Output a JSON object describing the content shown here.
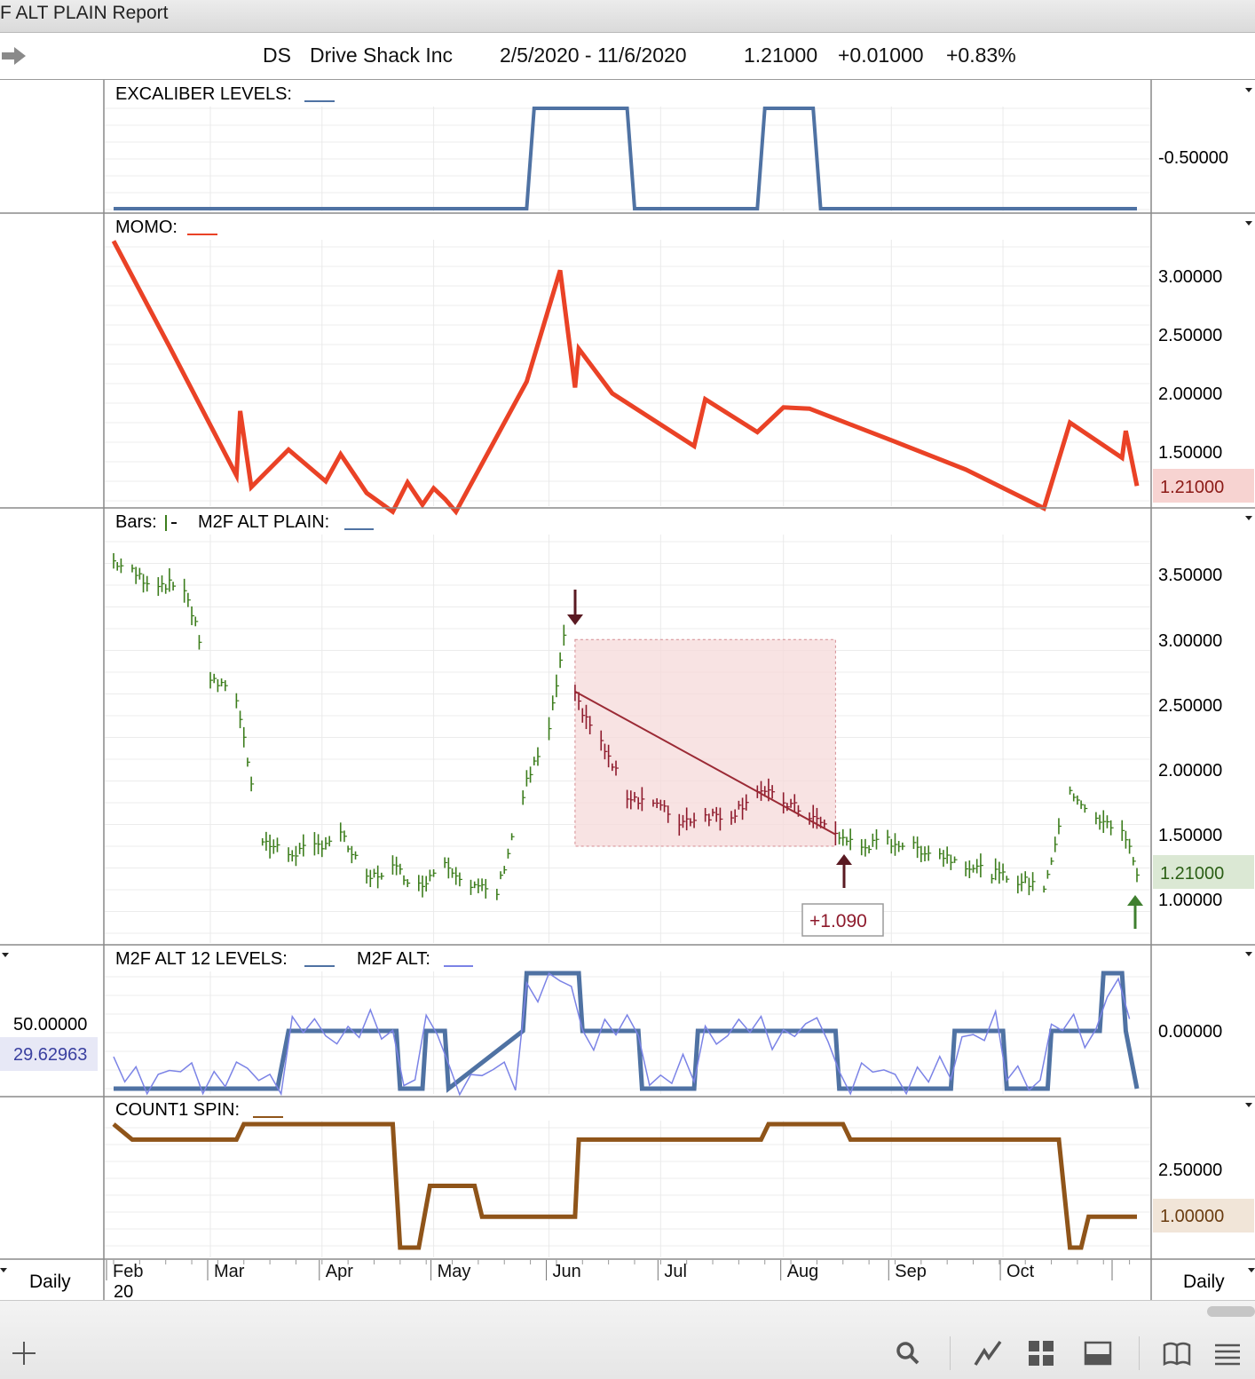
{
  "window": {
    "title": "F ALT PLAIN Report"
  },
  "symbol_bar": {
    "symbol": "DS",
    "name": "Drive Shack Inc",
    "date_range": "2/5/2020 - 11/6/2020",
    "last": "1.21000",
    "change": "+0.01000",
    "change_pct": "+0.83%"
  },
  "panels": {
    "excaliber": {
      "title": "EXCALIBER LEVELS:",
      "axis_labels": [
        "-0.50000"
      ]
    },
    "momo": {
      "title": "MOMO:",
      "axis_labels": [
        "3.00000",
        "2.50000",
        "2.00000",
        "1.50000"
      ],
      "last_badge": "1.21000"
    },
    "bars": {
      "title_bars": "Bars:",
      "title_line": "M2F ALT PLAIN:",
      "axis_labels": [
        "3.50000",
        "3.00000",
        "2.50000",
        "2.00000",
        "1.50000",
        "1.00000"
      ],
      "last_badge": "1.21000",
      "trade_label": "+1.090"
    },
    "m2f12": {
      "title1": "M2F ALT 12 LEVELS:",
      "title2": "M2F ALT:",
      "axis_labels": [
        "0.00000"
      ],
      "left_label": "50.00000",
      "left_badge": "29.62963"
    },
    "count1": {
      "title": "COUNT1 SPIN:",
      "axis_labels": [
        "2.50000"
      ],
      "last_badge": "1.00000"
    }
  },
  "time_axis": {
    "months": [
      "Feb",
      "Mar",
      "Apr",
      "May",
      "Jun",
      "Jul",
      "Aug",
      "Sep",
      "Oct"
    ],
    "year": "20",
    "period_left": "Daily",
    "period_right": "Daily"
  },
  "colors": {
    "level_line": "#4f72a3",
    "momo_line": "#ea4226",
    "bar_up": "#3c7d1c",
    "bar_down": "#8e1a2c",
    "count_line": "#8f5419",
    "trade_box": "#f5d9da"
  },
  "toolbar": {
    "icons": [
      "add-icon",
      "search-icon",
      "chart-line-icon",
      "grid-layout-icon",
      "panel-layout-icon",
      "book-icon",
      "menu-icon"
    ]
  },
  "chart_data": [
    {
      "type": "line",
      "title": "EXCALIBER LEVELS",
      "x": [
        "2020-02-05",
        "2020-05-26",
        "2020-05-28",
        "2020-06-22",
        "2020-06-24",
        "2020-07-27",
        "2020-07-29",
        "2020-08-11",
        "2020-08-13",
        "2020-11-06"
      ],
      "values": [
        0,
        0,
        1,
        1,
        0,
        0,
        1,
        1,
        0,
        0
      ]
    },
    {
      "type": "line",
      "title": "MOMO",
      "x": [
        "2020-02-05",
        "2020-02-20",
        "2020-03-09",
        "2020-03-10",
        "2020-03-13",
        "2020-03-23",
        "2020-04-02",
        "2020-04-06",
        "2020-04-13",
        "2020-04-20",
        "2020-04-24",
        "2020-04-28",
        "2020-05-01",
        "2020-05-04",
        "2020-05-07",
        "2020-05-26",
        "2020-06-04",
        "2020-06-08",
        "2020-06-09",
        "2020-06-18",
        "2020-07-10",
        "2020-07-13",
        "2020-07-27",
        "2020-08-03",
        "2020-08-10",
        "2020-09-01",
        "2020-09-21",
        "2020-10-12",
        "2020-10-19",
        "2020-11-02",
        "2020-11-03",
        "2020-11-06"
      ],
      "values": [
        3.3,
        2.4,
        1.3,
        1.85,
        1.2,
        1.52,
        1.25,
        1.48,
        1.15,
        0.99,
        1.24,
        1.05,
        1.19,
        1.1,
        0.99,
        2.1,
        3.05,
        2.05,
        2.38,
        2.0,
        1.55,
        1.95,
        1.67,
        1.88,
        1.87,
        1.6,
        1.35,
        1.02,
        1.75,
        1.45,
        1.68,
        1.21
      ]
    },
    {
      "type": "line",
      "title": "Bars / M2F ALT PLAIN (DS close)",
      "x": [
        "2020-02-05",
        "2020-02-14",
        "2020-02-24",
        "2020-03-02",
        "2020-03-09",
        "2020-03-16",
        "2020-03-23",
        "2020-03-30",
        "2020-04-06",
        "2020-04-13",
        "2020-04-20",
        "2020-04-27",
        "2020-05-04",
        "2020-05-11",
        "2020-05-18",
        "2020-05-26",
        "2020-06-01",
        "2020-06-05",
        "2020-06-08",
        "2020-06-15",
        "2020-06-22",
        "2020-06-29",
        "2020-07-06",
        "2020-07-13",
        "2020-07-20",
        "2020-07-27",
        "2020-08-03",
        "2020-08-10",
        "2020-08-17",
        "2020-08-24",
        "2020-08-31",
        "2020-09-14",
        "2020-09-28",
        "2020-10-05",
        "2020-10-12",
        "2020-10-19",
        "2020-10-26",
        "2020-11-02",
        "2020-11-06"
      ],
      "values": [
        3.6,
        3.45,
        3.4,
        2.7,
        2.55,
        1.45,
        1.35,
        1.4,
        1.5,
        1.15,
        1.25,
        1.1,
        1.3,
        1.1,
        1.05,
        1.9,
        2.3,
        3.0,
        2.55,
        2.2,
        1.8,
        1.75,
        1.6,
        1.65,
        1.65,
        1.85,
        1.75,
        1.65,
        1.5,
        1.4,
        1.45,
        1.35,
        1.2,
        1.15,
        1.1,
        1.85,
        1.6,
        1.55,
        1.21
      ],
      "trade": {
        "entry_date": "2020-06-08",
        "exit_date": "2020-08-17",
        "entry_price": 2.6,
        "exit_price": 1.5,
        "label": "+1.090"
      }
    },
    {
      "type": "line",
      "title": "M2F ALT 12 LEVELS",
      "x": [
        "2020-02-05",
        "2020-03-20",
        "2020-03-23",
        "2020-04-21",
        "2020-04-22",
        "2020-04-28",
        "2020-04-29",
        "2020-05-04",
        "2020-05-05",
        "2020-05-25",
        "2020-05-26",
        "2020-06-09",
        "2020-06-10",
        "2020-06-25",
        "2020-06-26",
        "2020-07-10",
        "2020-07-11",
        "2020-08-17",
        "2020-08-18",
        "2020-09-17",
        "2020-09-18",
        "2020-10-01",
        "2020-10-02",
        "2020-10-13",
        "2020-10-14",
        "2020-10-27",
        "2020-10-28",
        "2020-11-02",
        "2020-11-03",
        "2020-11-06"
      ],
      "values": [
        -1,
        -1,
        0,
        0,
        -1,
        -1,
        0,
        0,
        -1,
        0,
        1,
        1,
        0,
        0,
        -1,
        -1,
        0,
        0,
        -1,
        -1,
        0,
        0,
        -1,
        -1,
        0,
        0,
        1,
        1,
        0,
        -1
      ]
    },
    {
      "type": "line",
      "title": "COUNT1 SPIN",
      "x": [
        "2020-02-05",
        "2020-02-10",
        "2020-03-09",
        "2020-03-11",
        "2020-04-20",
        "2020-04-22",
        "2020-04-27",
        "2020-04-30",
        "2020-05-12",
        "2020-05-14",
        "2020-06-08",
        "2020-06-09",
        "2020-07-28",
        "2020-07-30",
        "2020-08-19",
        "2020-08-21",
        "2020-10-16",
        "2020-10-19",
        "2020-10-22",
        "2020-10-24",
        "2020-11-06"
      ],
      "values": [
        4,
        3.5,
        3.5,
        4,
        4,
        0,
        0,
        2,
        2,
        1,
        1,
        3.5,
        3.5,
        4,
        4,
        3.5,
        3.5,
        0,
        0,
        1,
        1
      ]
    }
  ]
}
